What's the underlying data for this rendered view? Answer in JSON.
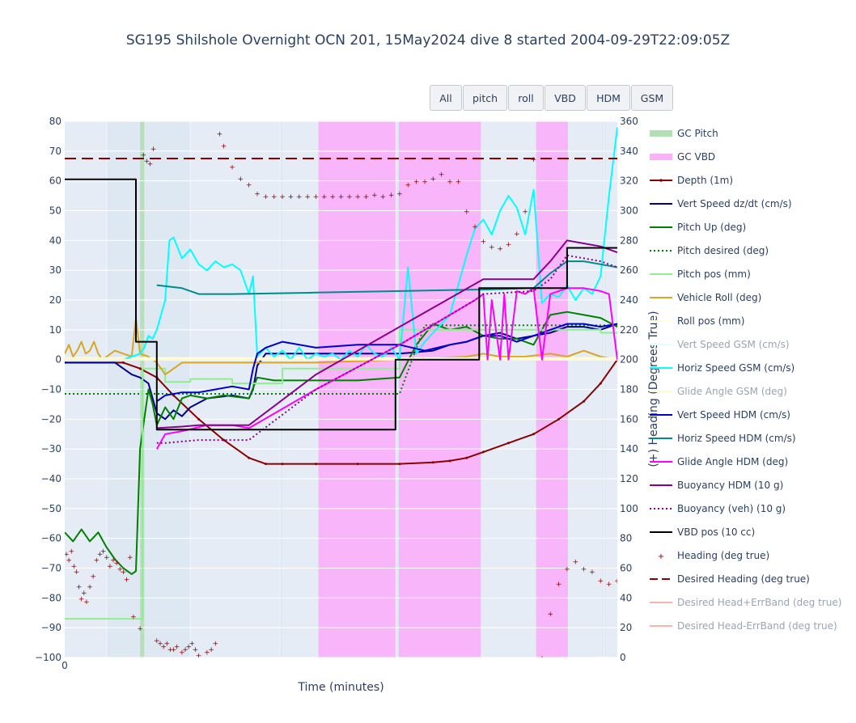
{
  "toolbar": {
    "buttons": [
      {
        "label": "All"
      },
      {
        "label": "pitch"
      },
      {
        "label": "roll"
      },
      {
        "label": "VBD"
      },
      {
        "label": "HDM"
      },
      {
        "label": "GSM"
      }
    ]
  },
  "chart_data": {
    "type": "line",
    "title": "SG195 Shilshole Overnight OCN 201, 15May2024 dive 8 started 2004-09-29T22:09:05Z",
    "xlabel": "Time (minutes)",
    "ylabel": "",
    "y2label": "(+) Heading (Degrees True)",
    "xlim": [
      0,
      66
    ],
    "x_ticks": [
      0
    ],
    "ylim": [
      -100,
      80
    ],
    "y2lim": [
      0,
      360
    ],
    "y_ticks": [
      80,
      70,
      60,
      50,
      40,
      30,
      20,
      10,
      0,
      -10,
      -20,
      -30,
      -40,
      -50,
      -60,
      -70,
      -80,
      -90,
      -100
    ],
    "y2_ticks": [
      360,
      340,
      320,
      300,
      280,
      260,
      240,
      220,
      200,
      180,
      160,
      140,
      120,
      100,
      80,
      60,
      40,
      20,
      0
    ],
    "legend_position": "right",
    "grid": true,
    "shaded_regions": [
      {
        "series": "GC Pitch",
        "x0": 9.0,
        "x1": 9.5
      },
      {
        "series": "GC VBD",
        "x0": 30.3,
        "x1": 39.5
      },
      {
        "series": "GC VBD",
        "x0": 39.9,
        "x1": 49.7
      },
      {
        "series": "GC VBD",
        "x0": 56.3,
        "x1": 60.1
      }
    ],
    "light_bands": [
      {
        "x0": 5.0,
        "x1": 15.0
      },
      {
        "x0": 25.6,
        "x1": 26.0
      },
      {
        "x0": 39.5,
        "x1": 39.9
      },
      {
        "x0": 64.2,
        "x1": 64.6
      }
    ],
    "series": [
      {
        "name": "GC Pitch",
        "style": "band",
        "color": "#b2dfb2"
      },
      {
        "name": "GC VBD",
        "style": "band",
        "color": "#f9b2f9"
      },
      {
        "name": "Depth (1m)",
        "axis": "y",
        "style": "line+dots",
        "color": "#8b0000",
        "x": [
          0,
          7,
          9,
          11,
          13,
          16,
          19,
          22,
          24,
          26,
          30,
          35,
          40,
          44,
          46,
          48,
          50,
          53,
          56,
          59,
          62,
          64,
          66
        ],
        "y": [
          -1,
          -1,
          -3,
          -6,
          -12,
          -20,
          -27,
          -33,
          -35,
          -35,
          -35,
          -35,
          -35,
          -34.5,
          -34,
          -33,
          -31,
          -28,
          -25,
          -20,
          -14,
          -8,
          0
        ]
      },
      {
        "name": "Vert Speed dz/dt (cm/s)",
        "axis": "y",
        "style": "line",
        "color": "#00008b",
        "x": [
          0,
          6,
          7,
          8,
          9,
          10,
          11,
          12,
          13,
          14,
          15,
          17,
          20,
          22,
          22.5,
          23,
          24,
          26,
          30,
          35,
          40,
          44,
          46,
          48,
          50,
          52,
          54,
          56,
          58,
          60,
          62,
          64,
          66
        ],
        "y": [
          -1,
          -1,
          -3,
          -5,
          -6,
          -8,
          -18,
          -20,
          -17,
          -19,
          -16,
          -13,
          -12,
          -13,
          -10,
          -2,
          2,
          2,
          2,
          2,
          2,
          3,
          5,
          6,
          8,
          9,
          7,
          8,
          9,
          11,
          11,
          10,
          12
        ]
      },
      {
        "name": "Pitch Up (deg)",
        "axis": "y",
        "style": "line",
        "color": "#008000",
        "x": [
          0,
          1,
          2,
          3,
          4,
          5,
          6,
          7,
          8,
          8.5,
          9,
          9.5,
          10,
          10.5,
          11,
          12,
          13,
          14,
          15,
          17,
          19,
          22,
          23,
          25,
          30,
          35,
          40,
          42,
          44,
          46,
          48,
          50,
          52,
          54,
          56,
          58,
          60,
          62,
          64,
          66
        ],
        "y": [
          -58,
          -61,
          -57,
          -61,
          -58,
          -63,
          -67,
          -70,
          -72,
          -71,
          -30,
          -20,
          -10,
          -15,
          -22,
          -16,
          -20,
          -13,
          -12,
          -13,
          -12,
          -13,
          -6,
          -7,
          -7,
          -7,
          -6,
          5,
          12,
          10,
          11,
          8,
          7,
          7,
          5,
          15,
          16,
          15,
          14,
          11
        ]
      },
      {
        "name": "Pitch desired (deg)",
        "axis": "y",
        "style": "dot",
        "color": "#008000",
        "x": [
          0,
          40,
          43,
          66
        ],
        "y": [
          -11.5,
          -11.5,
          11.5,
          11.5
        ]
      },
      {
        "name": "Pitch pos (mm)",
        "axis": "y",
        "style": "line",
        "color": "#90ee90",
        "x": [
          0,
          9.3,
          9.3,
          12,
          12,
          15,
          15,
          20,
          20,
          26,
          26,
          40,
          40,
          52,
          52,
          64,
          64,
          66
        ],
        "y": [
          -87,
          -87,
          -3,
          -3,
          -7.5,
          -7.5,
          -6.5,
          -6.5,
          -8,
          -8,
          -3,
          -3,
          10,
          10,
          10,
          10,
          9,
          9
        ]
      },
      {
        "name": "Vehicle Roll (deg)",
        "axis": "y",
        "style": "line",
        "color": "#daa520",
        "x": [
          0,
          0.5,
          1,
          1.5,
          2,
          2.5,
          3,
          3.5,
          4,
          4.5,
          5,
          6,
          7,
          8,
          8.5,
          9,
          10,
          11,
          12,
          14,
          20,
          30,
          40,
          48,
          50,
          52,
          55,
          58,
          60,
          62,
          64,
          66
        ],
        "y": [
          2,
          5,
          1,
          3,
          6,
          2,
          3,
          6,
          2,
          0,
          1,
          3,
          2,
          1,
          14,
          2,
          1,
          -1,
          -5,
          -1,
          -1,
          -1,
          0,
          1,
          2,
          1,
          1,
          2,
          1,
          3,
          1,
          0
        ]
      },
      {
        "name": "Roll pos (mm)",
        "axis": "y",
        "style": "line",
        "color": "#ffffe0",
        "x": [
          0,
          66
        ],
        "y": [
          0.5,
          0.5
        ]
      },
      {
        "name": "Vert Speed GSM (cm/s)",
        "axis": "y",
        "style": "line",
        "color": "#e0ffff",
        "x": [
          0,
          66
        ],
        "y": [
          0,
          0
        ]
      },
      {
        "name": "Horiz Speed GSM (cm/s)",
        "axis": "y",
        "style": "line",
        "color": "#00ffff",
        "x": [
          0,
          7,
          8,
          9,
          9.5,
          10,
          10.5,
          11,
          11.5,
          12,
          12.5,
          13,
          14,
          15,
          16,
          17,
          18,
          19,
          20,
          21,
          22,
          22.5,
          23,
          24,
          25,
          26,
          27,
          28,
          29,
          30,
          31,
          32,
          33,
          34,
          35,
          36,
          37,
          38,
          39,
          40,
          41,
          42,
          43,
          44,
          45,
          46,
          47,
          48,
          49,
          50,
          51,
          52,
          53,
          54,
          55,
          56,
          57,
          58,
          59,
          60,
          61,
          62,
          63,
          64,
          65,
          66
        ],
        "y": [
          0,
          0,
          1,
          2,
          4,
          8,
          7,
          10,
          15,
          20,
          40,
          41,
          34,
          37,
          32,
          30,
          33,
          31,
          32,
          30,
          22,
          28,
          1,
          4,
          1,
          3,
          0,
          4,
          0,
          2,
          1,
          2,
          0,
          3,
          1,
          5,
          2,
          1,
          4,
          0,
          31,
          2,
          6,
          9,
          12,
          15,
          25,
          35,
          44,
          47,
          42,
          50,
          55,
          51,
          42,
          57,
          19,
          22,
          21,
          25,
          20,
          24,
          22,
          28,
          55,
          78
        ]
      },
      {
        "name": "Glide Angle GSM (deg)",
        "axis": "y",
        "style": "line",
        "color": "#fffacd",
        "x": [
          0,
          66
        ],
        "y": [
          0,
          0
        ]
      },
      {
        "name": "Vert Speed HDM (cm/s)",
        "axis": "y",
        "style": "line",
        "color": "#0000cd",
        "x": [
          11,
          12,
          14,
          16,
          18,
          20,
          22,
          22.5,
          23,
          24,
          26,
          30,
          35,
          40,
          43,
          46,
          48,
          50,
          52,
          54,
          56,
          58,
          60,
          62,
          64,
          66
        ],
        "y": [
          -14,
          -12,
          -11,
          -11,
          -10,
          -9,
          -10,
          -3,
          2,
          4,
          6,
          4,
          5,
          5,
          3,
          5,
          6,
          8,
          8,
          6,
          8,
          10,
          12,
          12,
          11,
          12
        ]
      },
      {
        "name": "Horiz Speed HDM (cm/s)",
        "axis": "y",
        "style": "line",
        "color": "#008b8b",
        "x": [
          11,
          14,
          16,
          20,
          30,
          40,
          49,
          50,
          56,
          58,
          60,
          62,
          64,
          66
        ],
        "y": [
          25,
          24,
          22,
          22,
          22.5,
          23,
          23.5,
          23.5,
          24,
          29,
          33,
          33,
          32,
          31
        ]
      },
      {
        "name": "Glide Angle HDM (deg)",
        "axis": "y",
        "style": "line",
        "color": "#ff00ff",
        "x": [
          11,
          12,
          14,
          17,
          20,
          22,
          30,
          40,
          49,
          50,
          50.5,
          51,
          52,
          52.5,
          53,
          54,
          55,
          56,
          57,
          58,
          60,
          62,
          64,
          65,
          66
        ],
        "y": [
          -30,
          -25,
          -24,
          -22,
          -22,
          -23,
          -10,
          5,
          20,
          22,
          0,
          20,
          0,
          22,
          0,
          23,
          22,
          24,
          0,
          22,
          24,
          24,
          23,
          22,
          0
        ]
      },
      {
        "name": "Buoyancy HDM (10 g)",
        "axis": "y",
        "style": "line",
        "color": "#8b008b",
        "x": [
          11,
          14,
          16,
          22,
          30,
          40,
          50,
          56,
          58,
          60,
          62,
          64,
          66
        ],
        "y": [
          -23,
          -22.5,
          -22,
          -22,
          -5,
          11,
          27,
          27,
          33,
          40,
          39,
          38,
          36
        ]
      },
      {
        "name": "Buoyancy (veh) (10 g)",
        "axis": "y",
        "style": "dot",
        "color": "#8b008b",
        "x": [
          11,
          12,
          16,
          22,
          30,
          40,
          49,
          50,
          56,
          58,
          60,
          62,
          64,
          66
        ],
        "y": [
          -28,
          -28,
          -27,
          -27,
          -10,
          5,
          20,
          22,
          23,
          27,
          35,
          34,
          33,
          31
        ]
      },
      {
        "name": "VBD pos (10 cc)",
        "axis": "y",
        "style": "line",
        "color": "#000000",
        "x": [
          0,
          8.5,
          8.5,
          11,
          11,
          11.5,
          11.5,
          22,
          22,
          39.5,
          39.5,
          49.5,
          49.5,
          60,
          60,
          66
        ],
        "y": [
          60.5,
          60.5,
          6,
          6,
          -23.5,
          -23.5,
          -23.5,
          -23.5,
          -23.5,
          -23.5,
          0,
          0,
          24,
          24,
          37.5,
          37.5
        ]
      },
      {
        "name": "Heading (deg true)",
        "axis": "y2",
        "style": "markers",
        "color": "#8b0000",
        "x": [
          0.2,
          0.5,
          0.8,
          1.1,
          1.4,
          1.7,
          2.0,
          2.3,
          2.6,
          3.0,
          3.4,
          3.8,
          4.2,
          4.6,
          5.0,
          5.4,
          5.8,
          6.2,
          6.6,
          7.0,
          7.4,
          7.8,
          8.2,
          9.0,
          9.4,
          9.8,
          10.2,
          10.6,
          11.0,
          11.4,
          11.8,
          12.2,
          12.6,
          13.0,
          13.4,
          14.0,
          14.4,
          14.8,
          15.2,
          15.6,
          16,
          17,
          17.5,
          18,
          18.5,
          19,
          20,
          21,
          22,
          23,
          24,
          25,
          26,
          27,
          28,
          29,
          30,
          31,
          32,
          33,
          34,
          35,
          36,
          37,
          38,
          39,
          40,
          41,
          42,
          43,
          44,
          45,
          46,
          47,
          48,
          49,
          50,
          51,
          52,
          53,
          54,
          55,
          56,
          57,
          58,
          59,
          60,
          61,
          62,
          63,
          64,
          65,
          66
        ],
        "y": [
          70,
          66,
          72,
          62,
          58,
          48,
          40,
          44,
          38,
          48,
          55,
          66,
          70,
          72,
          68,
          62,
          66,
          64,
          60,
          58,
          53,
          68,
          28,
          20,
          338,
          334,
          332,
          342,
          12,
          10,
          8,
          10,
          6,
          6,
          8,
          4,
          6,
          8,
          10,
          6,
          2,
          4,
          6,
          10,
          352,
          344,
          330,
          322,
          318,
          312,
          310,
          310,
          310,
          310,
          310,
          310,
          310,
          310,
          310,
          310,
          310,
          310,
          310,
          311,
          310,
          311,
          312,
          318,
          320,
          320,
          322,
          325,
          320,
          320,
          300,
          290,
          280,
          276,
          275,
          278,
          285,
          300,
          335,
          0,
          30,
          50,
          60,
          65,
          60,
          58,
          52,
          50,
          52
        ]
      },
      {
        "name": "Desired Heading (deg true)",
        "axis": "y2",
        "style": "dash",
        "color": "#8b0000",
        "x": [
          0,
          66
        ],
        "y": [
          335,
          335
        ]
      },
      {
        "name": "Desired Head+ErrBand (deg true)",
        "axis": "y2",
        "style": "line",
        "color": "#fa8072",
        "legend_only": true,
        "x": [],
        "y": []
      },
      {
        "name": "Desired Head-ErrBand (deg true)",
        "axis": "y2",
        "style": "line",
        "color": "#fa8072",
        "legend_only": true,
        "x": [],
        "y": []
      }
    ]
  }
}
